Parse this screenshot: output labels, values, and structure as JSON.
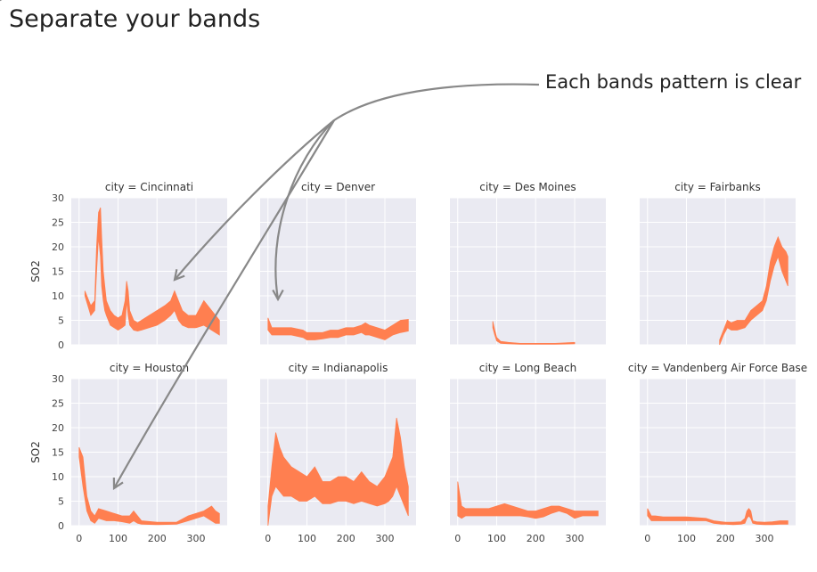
{
  "slide": {
    "title": "Separate your bands",
    "callout": "Each bands pattern is clear"
  },
  "chart_data": {
    "type": "area",
    "ylabel": "SO2",
    "ylim": [
      0,
      30
    ],
    "xlim": [
      -20,
      380
    ],
    "yticks": [
      0,
      5,
      10,
      15,
      20,
      25,
      30
    ],
    "xticks": [
      0,
      100,
      200,
      300
    ],
    "band_color": "#ff7f50",
    "panel_bg": "#eaeaf2",
    "annotation_color": "#888888",
    "panels": [
      {
        "title": "city = Cincinnati",
        "x": [
          15,
          30,
          40,
          45,
          50,
          55,
          58,
          62,
          66,
          70,
          75,
          80,
          90,
          100,
          110,
          118,
          122,
          126,
          130,
          140,
          150,
          160,
          180,
          200,
          220,
          235,
          245,
          255,
          265,
          280,
          300,
          320,
          340,
          350,
          360
        ],
        "lower": [
          10,
          6,
          7,
          15,
          22,
          18,
          12,
          9,
          7,
          6,
          5,
          4,
          3.5,
          3,
          3.5,
          4,
          9,
          6,
          4,
          3,
          2.8,
          3,
          3.5,
          4,
          5,
          6,
          7,
          5,
          4,
          3.5,
          3.5,
          4,
          3,
          2.5,
          2
        ],
        "upper": [
          11,
          8,
          9,
          20,
          27,
          28,
          22,
          15,
          12,
          9,
          8,
          7,
          6,
          5.5,
          6,
          9,
          13,
          11,
          7,
          5,
          4.5,
          5,
          6,
          7,
          8,
          9,
          11,
          9,
          7,
          6,
          6,
          9,
          7,
          6,
          5
        ]
      },
      {
        "title": "city = Denver",
        "x": [
          0,
          10,
          30,
          60,
          90,
          100,
          120,
          140,
          160,
          180,
          200,
          220,
          240,
          250,
          260,
          280,
          300,
          320,
          340,
          360
        ],
        "lower": [
          3,
          2,
          2,
          2,
          1.5,
          1,
          1,
          1.2,
          1.5,
          1.5,
          2,
          2,
          2.5,
          2,
          2,
          1.5,
          1,
          2,
          2.5,
          2.8
        ],
        "upper": [
          5.5,
          3.5,
          3.5,
          3.5,
          3,
          2.5,
          2.5,
          2.5,
          3,
          3,
          3.5,
          3.5,
          4,
          4.5,
          4,
          3.5,
          3,
          4,
          5,
          5.2
        ]
      },
      {
        "title": "city = Des Moines",
        "x": [
          90,
          95,
          100,
          110,
          130,
          160,
          200,
          250,
          300
        ],
        "lower": [
          3.5,
          2,
          0.8,
          0.3,
          0.2,
          0.1,
          0.1,
          0.1,
          0.2
        ],
        "upper": [
          4.8,
          3,
          1.5,
          0.7,
          0.5,
          0.3,
          0.3,
          0.3,
          0.5
        ]
      },
      {
        "title": "city = Fairbanks",
        "x": [
          185,
          195,
          205,
          215,
          230,
          250,
          265,
          280,
          295,
          305,
          315,
          325,
          335,
          345,
          355,
          360
        ],
        "lower": [
          0,
          2,
          3.5,
          3,
          3,
          3.5,
          5,
          6,
          7,
          9,
          13,
          16,
          18,
          15,
          13,
          12
        ],
        "upper": [
          1,
          3,
          5,
          4.5,
          5,
          5,
          7,
          8,
          9,
          12,
          17,
          20,
          22,
          20,
          19,
          18
        ]
      },
      {
        "title": "city = Houston",
        "x": [
          0,
          10,
          20,
          30,
          40,
          50,
          70,
          90,
          110,
          130,
          140,
          150,
          160,
          200,
          250,
          280,
          300,
          320,
          340,
          350,
          360
        ],
        "lower": [
          14,
          8,
          3,
          1,
          0.5,
          1.5,
          1,
          1,
          0.8,
          0.5,
          1,
          0.5,
          0.3,
          0.2,
          0.3,
          1,
          1.5,
          2,
          1,
          0.5,
          0.5
        ],
        "upper": [
          16,
          14,
          6,
          3,
          2,
          3.5,
          3,
          2.5,
          2,
          2,
          3,
          2,
          1,
          0.7,
          0.7,
          2,
          2.5,
          3,
          4,
          3,
          2.5
        ]
      },
      {
        "title": "city = Indianapolis",
        "x": [
          0,
          10,
          20,
          30,
          40,
          60,
          80,
          100,
          120,
          140,
          160,
          180,
          200,
          220,
          240,
          260,
          280,
          300,
          310,
          320,
          330,
          340,
          350,
          360
        ],
        "lower": [
          0,
          6,
          8,
          7,
          6,
          6,
          5,
          5,
          6,
          4.5,
          4.5,
          5,
          5,
          4.5,
          5,
          4.5,
          4,
          4.5,
          5,
          6,
          8,
          6,
          4,
          2
        ],
        "upper": [
          4,
          12,
          19,
          16,
          14,
          12,
          11,
          10,
          12,
          9,
          9,
          10,
          10,
          9,
          11,
          9,
          8,
          10,
          12,
          14,
          22,
          18,
          12,
          8
        ]
      },
      {
        "title": "city = Long Beach",
        "x": [
          0,
          10,
          20,
          40,
          60,
          80,
          100,
          120,
          140,
          160,
          180,
          200,
          220,
          240,
          260,
          280,
          300,
          320,
          340,
          360
        ],
        "lower": [
          2,
          1.5,
          2,
          2,
          2,
          2,
          2,
          2,
          2,
          2,
          1.8,
          1.5,
          1.8,
          2.5,
          3,
          2.5,
          1.5,
          2,
          2,
          2
        ],
        "upper": [
          9,
          4,
          3.5,
          3.5,
          3.5,
          3.5,
          4,
          4.5,
          4,
          3.5,
          3,
          3,
          3.5,
          4,
          4,
          3.5,
          3,
          3,
          3,
          3
        ]
      },
      {
        "title": "city = Vandenberg Air Force Base",
        "x": [
          0,
          10,
          20,
          40,
          60,
          100,
          150,
          170,
          190,
          200,
          220,
          240,
          250,
          255,
          260,
          265,
          270,
          280,
          300,
          320,
          340,
          360
        ],
        "lower": [
          2,
          1,
          1,
          1,
          1,
          1,
          1,
          0.5,
          0.3,
          0.3,
          0.2,
          0.3,
          0.5,
          1.5,
          2,
          1.5,
          0.5,
          0.3,
          0.2,
          0.2,
          0.3,
          0.3
        ],
        "upper": [
          3.5,
          2,
          2,
          1.8,
          1.8,
          1.8,
          1.5,
          1,
          0.8,
          0.7,
          0.7,
          0.8,
          1.5,
          3,
          3.5,
          3,
          1,
          0.8,
          0.7,
          0.8,
          1,
          1
        ]
      }
    ]
  }
}
